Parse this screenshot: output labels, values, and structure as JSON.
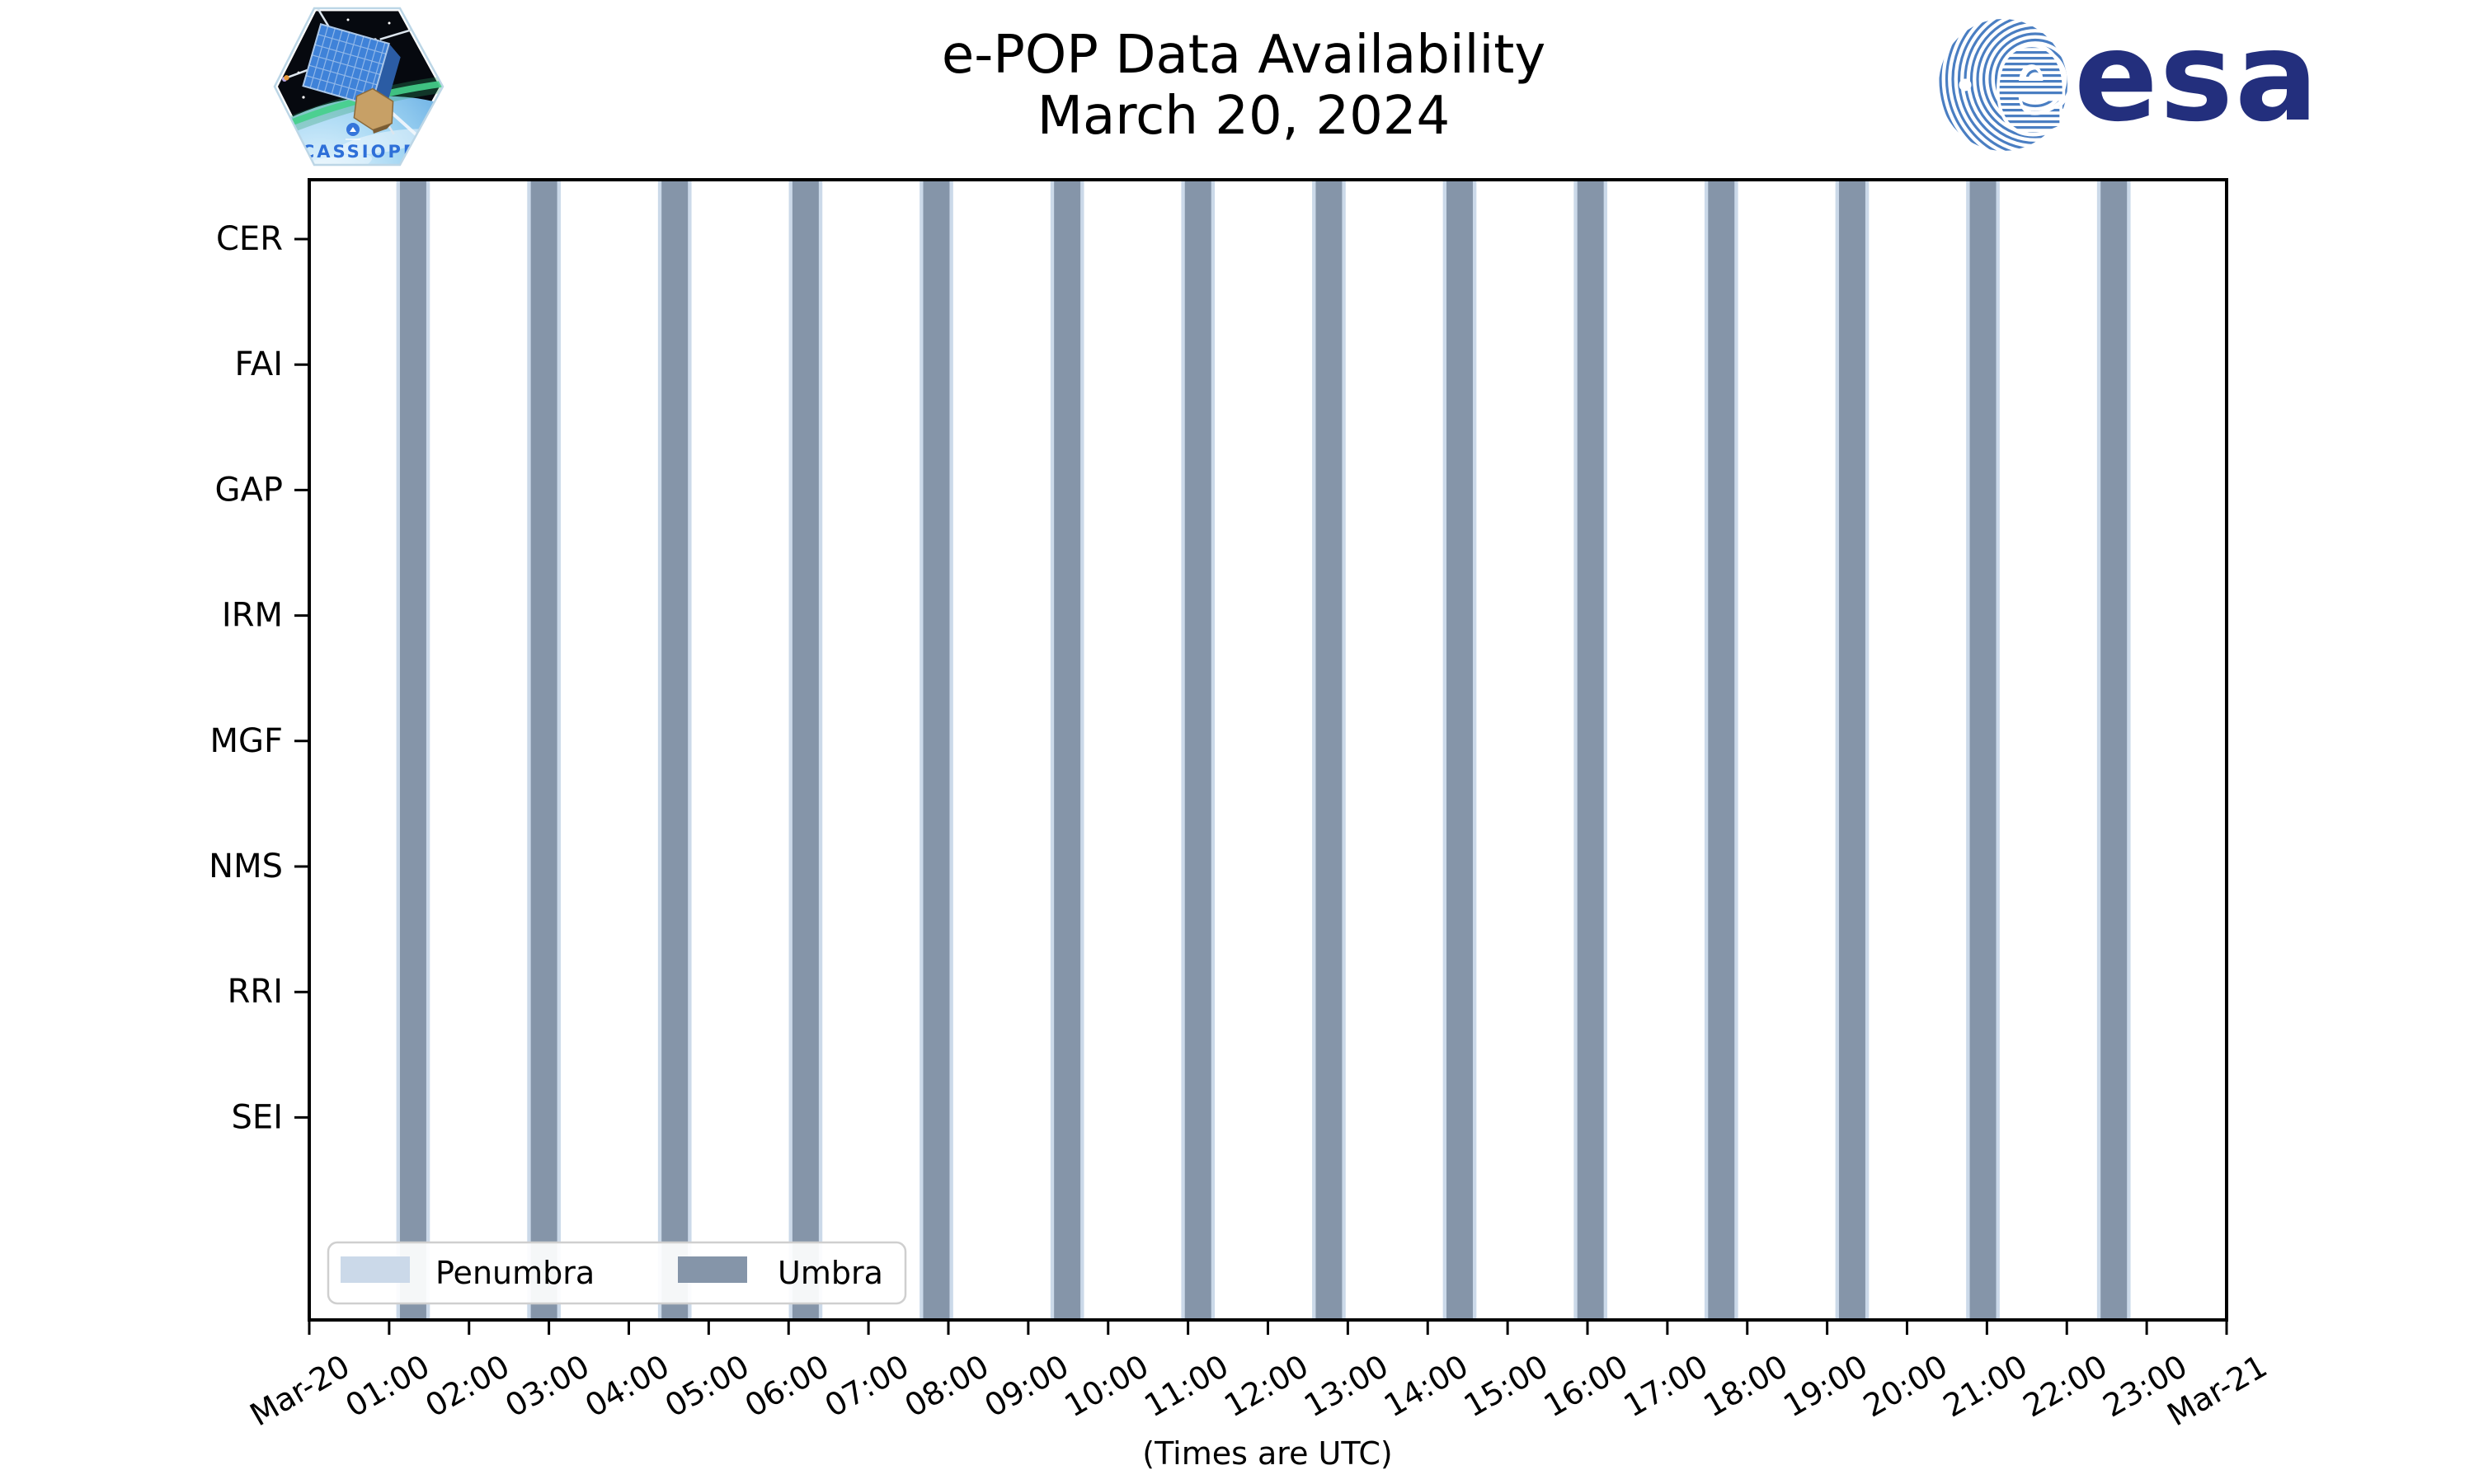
{
  "header": {
    "title_line1": "e-POP Data Availability",
    "title_line2": "March 20, 2024",
    "cassiope_wordmark": "CASSIOPE",
    "esa_wordmark": "esa",
    "esa_globe_letter": "e"
  },
  "colors": {
    "umbra": "#8595A9",
    "penumbra": "#CBD9E9",
    "axis": "#000000",
    "legend_border": "#CFCFCF",
    "legend_background": "#FFFFFF",
    "esa_navy": "#232F7D",
    "esa_globe_blue": "#4A7EC2",
    "cassiope_text_blue": "#2E6FD8"
  },
  "chart_data": {
    "type": "timeline-shading-bars",
    "title": "e-POP Data Availability",
    "subtitle": "March 20, 2024",
    "x_axis_note": "(Times are UTC)",
    "x_range_hours": [
      0,
      24
    ],
    "x_tick_labels": [
      "Mar-20",
      "01:00",
      "02:00",
      "03:00",
      "04:00",
      "05:00",
      "06:00",
      "07:00",
      "08:00",
      "09:00",
      "10:00",
      "11:00",
      "12:00",
      "13:00",
      "14:00",
      "15:00",
      "16:00",
      "17:00",
      "18:00",
      "19:00",
      "20:00",
      "21:00",
      "22:00",
      "23:00",
      "Mar-21"
    ],
    "y_categories": [
      "CER",
      "FAI",
      "GAP",
      "IRM",
      "MGF",
      "NMS",
      "RRI",
      "SEI"
    ],
    "legend": [
      {
        "label": "Penumbra",
        "color": "#CBD9E9"
      },
      {
        "label": "Umbra",
        "color": "#8595A9"
      }
    ],
    "legend_position": "lower left",
    "grid": false,
    "bars_span_full_height": true,
    "penumbra_edge_hours": 0.045,
    "umbra_intervals": [
      {
        "start": "01:08",
        "end": "01:28",
        "start_h": 1.135,
        "end_h": 1.465
      },
      {
        "start": "02:46",
        "end": "03:06",
        "start_h": 2.773,
        "end_h": 3.103
      },
      {
        "start": "04:25",
        "end": "04:44",
        "start_h": 4.41,
        "end_h": 4.74
      },
      {
        "start": "06:03",
        "end": "06:23",
        "start_h": 6.048,
        "end_h": 6.378
      },
      {
        "start": "07:41",
        "end": "08:01",
        "start_h": 7.685,
        "end_h": 8.015
      },
      {
        "start": "09:19",
        "end": "09:39",
        "start_h": 9.323,
        "end_h": 9.653
      },
      {
        "start": "10:58",
        "end": "11:17",
        "start_h": 10.96,
        "end_h": 11.29
      },
      {
        "start": "12:36",
        "end": "12:56",
        "start_h": 12.598,
        "end_h": 12.928
      },
      {
        "start": "14:14",
        "end": "14:34",
        "start_h": 14.235,
        "end_h": 14.565
      },
      {
        "start": "15:52",
        "end": "16:12",
        "start_h": 15.873,
        "end_h": 16.203
      },
      {
        "start": "17:31",
        "end": "17:50",
        "start_h": 17.51,
        "end_h": 17.84
      },
      {
        "start": "19:09",
        "end": "19:29",
        "start_h": 19.148,
        "end_h": 19.478
      },
      {
        "start": "20:47",
        "end": "21:07",
        "start_h": 20.785,
        "end_h": 21.115
      },
      {
        "start": "22:25",
        "end": "22:45",
        "start_h": 22.423,
        "end_h": 22.753
      }
    ]
  }
}
